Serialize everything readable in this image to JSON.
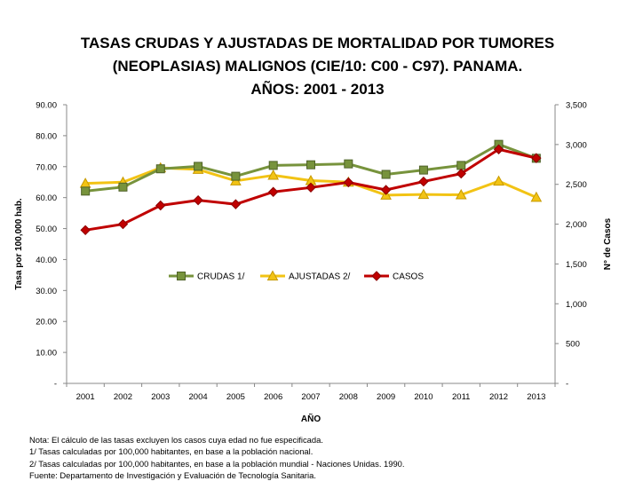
{
  "title": {
    "line1": "TASAS CRUDAS Y AJUSTADAS DE MORTALIDAD POR  TUMORES",
    "line2": "(NEOPLASIAS) MALIGNOS (CIE/10: C00 - C97).  PANAMA.",
    "line3": "AÑOS: 2001 - 2013"
  },
  "chart_data": {
    "type": "line",
    "x": [
      "2001",
      "2002",
      "2003",
      "2004",
      "2005",
      "2006",
      "2007",
      "2008",
      "2009",
      "2010",
      "2011",
      "2012",
      "2013"
    ],
    "xlabel": "AÑO",
    "ylabel": "Tasa  por 100,000 hab.",
    "y2label": "N° de Casos",
    "ylim": [
      0,
      90
    ],
    "y2lim": [
      0,
      3500
    ],
    "y_ticks": [
      "-",
      "10.00",
      "20.00",
      "30.00",
      "40.00",
      "50.00",
      "60.00",
      "70.00",
      "80.00",
      "90.00"
    ],
    "y2_ticks": [
      "-",
      "500",
      "1,000",
      "1,500",
      "2,000",
      "2,500",
      "3,000",
      "3,500"
    ],
    "grid": false,
    "legend_position": "center",
    "series": [
      {
        "name": "CRUDAS 1/",
        "axis": "left",
        "color": "#77933C",
        "marker": "square",
        "values": [
          62.1,
          63.4,
          69.3,
          70.1,
          66.9,
          70.4,
          70.6,
          70.9,
          67.5,
          68.9,
          70.4,
          77.2,
          72.7
        ]
      },
      {
        "name": "AJUSTADAS 2/",
        "axis": "left",
        "color": "#F2C314",
        "marker": "triangle",
        "values": [
          64.6,
          65.0,
          69.6,
          69.1,
          65.4,
          67.2,
          65.5,
          65.0,
          60.8,
          61.0,
          60.9,
          65.3,
          60.1
        ]
      },
      {
        "name": "CASOS",
        "axis": "right",
        "color": "#C00000",
        "marker": "diamond",
        "values": [
          1925,
          2000,
          2235,
          2300,
          2250,
          2405,
          2460,
          2525,
          2430,
          2535,
          2635,
          2940,
          2830
        ]
      }
    ]
  },
  "notes": {
    "n1": "Nota: El cálculo de las tasas excluyen los casos cuya edad no fue especificada.",
    "n2": "1/ Tasas calculadas por 100,000  habitantes, en base a la población nacional.",
    "n3": "2/ Tasas calculadas por 100,000 habitantes, en base a la población mundial - Naciones Unidas. 1990.",
    "n4": "Fuente: Departamento de Investigación y Evaluación de Tecnología Sanitaria."
  }
}
